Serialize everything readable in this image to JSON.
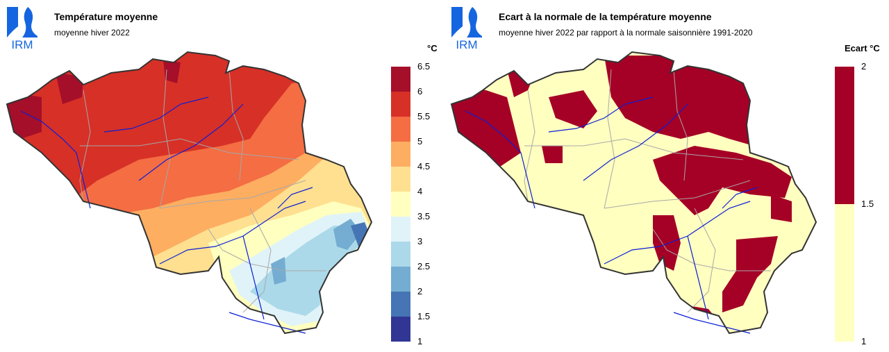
{
  "left_panel": {
    "logo_text": "IRM",
    "title": "Température moyenne",
    "subtitle": "moyenne hiver 2022",
    "unit": "°C",
    "legend": {
      "ticks": [
        "6.5",
        "6",
        "5.5",
        "5",
        "4.5",
        "4",
        "3.5",
        "3",
        "2.5",
        "2",
        "1.5",
        "1"
      ],
      "bins": [
        {
          "from": 6.0,
          "to": 6.5,
          "color": "#a50f2a"
        },
        {
          "from": 5.5,
          "to": 6.0,
          "color": "#d73027"
        },
        {
          "from": 5.0,
          "to": 5.5,
          "color": "#f46d43"
        },
        {
          "from": 4.5,
          "to": 5.0,
          "color": "#fdae61"
        },
        {
          "from": 4.0,
          "to": 4.5,
          "color": "#fee090"
        },
        {
          "from": 3.5,
          "to": 4.0,
          "color": "#ffffbf"
        },
        {
          "from": 3.0,
          "to": 3.5,
          "color": "#e0f3f8"
        },
        {
          "from": 2.5,
          "to": 3.0,
          "color": "#abd9e9"
        },
        {
          "from": 2.0,
          "to": 2.5,
          "color": "#74add1"
        },
        {
          "from": 1.5,
          "to": 2.0,
          "color": "#4575b4"
        },
        {
          "from": 1.0,
          "to": 1.5,
          "color": "#313695"
        }
      ]
    }
  },
  "right_panel": {
    "logo_text": "IRM",
    "title": "Ecart à la normale de la température moyenne",
    "subtitle": "moyenne hiver 2022 par rapport à la normale saisonnière 1991-2020",
    "unit": "Ecart °C",
    "legend": {
      "ticks": [
        "2",
        "1.5",
        "1"
      ],
      "bins": [
        {
          "from": 1.5,
          "to": 2.0,
          "color": "#a50026"
        },
        {
          "from": 1.0,
          "to": 1.5,
          "color": "#ffffc0"
        }
      ]
    }
  },
  "colors": {
    "logo_blue": "#1565e0",
    "border": "#333333",
    "rivers": "#0b1fd6",
    "provinces": "#a8a8a8"
  }
}
